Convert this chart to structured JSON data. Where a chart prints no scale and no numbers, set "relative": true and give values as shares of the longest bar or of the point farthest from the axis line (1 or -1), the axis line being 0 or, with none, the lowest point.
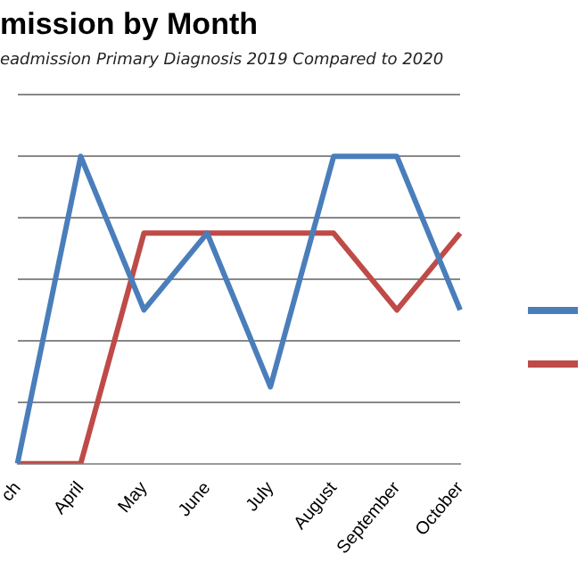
{
  "chart_data": {
    "type": "line",
    "title": "mission by Month",
    "subtitle": "eadmission Primary Diagnosis 2019 Compared to 2020",
    "categories": [
      "ch",
      "April",
      "May",
      "June",
      "July",
      "August",
      "September",
      "October"
    ],
    "relative": true,
    "series": [
      {
        "color": "#4a7ebb",
        "values": [
          0,
          1,
          0.5,
          0.75,
          0.25,
          1,
          1,
          0.5
        ]
      },
      {
        "color": "#be4b48",
        "values": [
          0,
          0,
          0.75,
          0.75,
          0.75,
          0.75,
          0.5,
          0.75
        ]
      }
    ],
    "grid": "y",
    "marker": "none",
    "line_style": "solid"
  }
}
